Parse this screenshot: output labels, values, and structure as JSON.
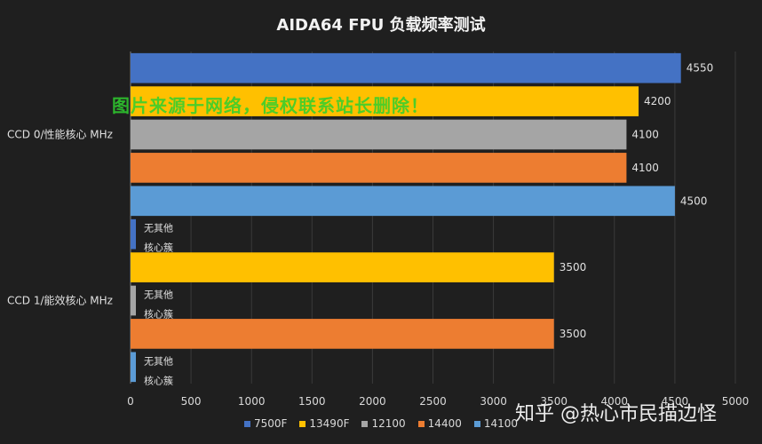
{
  "chart_data": {
    "type": "bar",
    "orientation": "horizontal",
    "title": "AIDA64  FPU  负载频率测试",
    "categories": [
      "CCD 1/能效核心 MHz",
      "CCD 0/性能核心 MHz"
    ],
    "series": [
      {
        "name": "7500F",
        "color": "#4472c4",
        "values": [
          null,
          4550
        ]
      },
      {
        "name": "13490F",
        "color": "#ffc000",
        "values": [
          3500,
          4200
        ]
      },
      {
        "name": "12100",
        "color": "#a5a5a5",
        "values": [
          null,
          4100
        ]
      },
      {
        "name": "14400",
        "color": "#ed7d31",
        "values": [
          3500,
          4100
        ]
      },
      {
        "name": "14100",
        "color": "#5b9bd5",
        "values": [
          null,
          4500
        ]
      }
    ],
    "null_label": [
      "无其他",
      "核心簇"
    ],
    "xlim": [
      0,
      5000
    ],
    "xticks": [
      0,
      500,
      1000,
      1500,
      2000,
      2500,
      3000,
      3500,
      4000,
      4500,
      5000
    ],
    "grid": true,
    "legend_position": "bottom"
  },
  "watermark": "图片来源于网络，侵权联系站长删除！",
  "credit": "知乎 @热心市民描边怪"
}
